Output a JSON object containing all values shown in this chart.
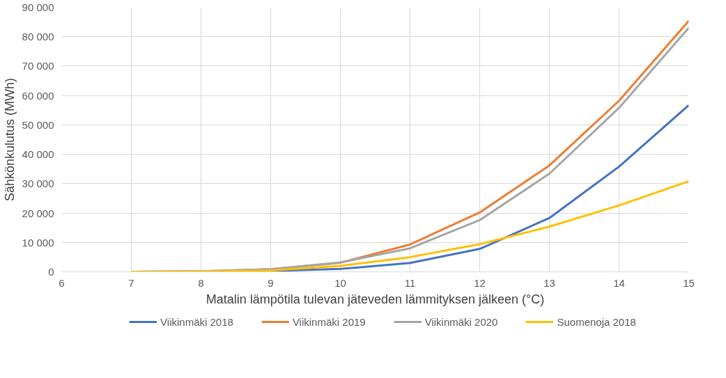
{
  "chart_data": {
    "type": "line",
    "xlabel": "Matalin lämpötila tulevan jäteveden lämmityksen jälkeen (°C)",
    "ylabel": "Sähkönkulutus (MWh)",
    "xlim": [
      6,
      15
    ],
    "xticks": [
      6,
      7,
      8,
      9,
      10,
      11,
      12,
      13,
      14,
      15
    ],
    "ylim": [
      0,
      90000
    ],
    "yticks": [
      {
        "value": 0,
        "label": "0"
      },
      {
        "value": 10000,
        "label": "10 000"
      },
      {
        "value": 20000,
        "label": "20 000"
      },
      {
        "value": 30000,
        "label": "30 000"
      },
      {
        "value": 40000,
        "label": "40 000"
      },
      {
        "value": 50000,
        "label": "50 000"
      },
      {
        "value": 60000,
        "label": "60 000"
      },
      {
        "value": 70000,
        "label": "70 000"
      },
      {
        "value": 80000,
        "label": "80 000"
      },
      {
        "value": 90000,
        "label": "90 000"
      }
    ],
    "x": [
      7,
      8,
      9,
      10,
      11,
      12,
      13,
      14,
      15
    ],
    "series": [
      {
        "name": "Viikinmäki 2018",
        "color": "#4472c4",
        "values": [
          0,
          100,
          300,
          1000,
          3000,
          7800,
          18300,
          35800,
          56700
        ]
      },
      {
        "name": "Viikinmäki 2019",
        "color": "#ed7d31",
        "values": [
          0,
          200,
          900,
          3100,
          9300,
          20200,
          36200,
          58200,
          85400
        ]
      },
      {
        "name": "Viikinmäki 2020",
        "color": "#a5a5a5",
        "values": [
          0,
          200,
          900,
          3200,
          8000,
          17600,
          33400,
          55800,
          83000
        ]
      },
      {
        "name": "Suomenoja 2018",
        "color": "#ffc000",
        "values": [
          0,
          100,
          500,
          2000,
          5000,
          9400,
          15400,
          22600,
          30800
        ]
      }
    ],
    "grid": true,
    "legend": "bottom"
  }
}
